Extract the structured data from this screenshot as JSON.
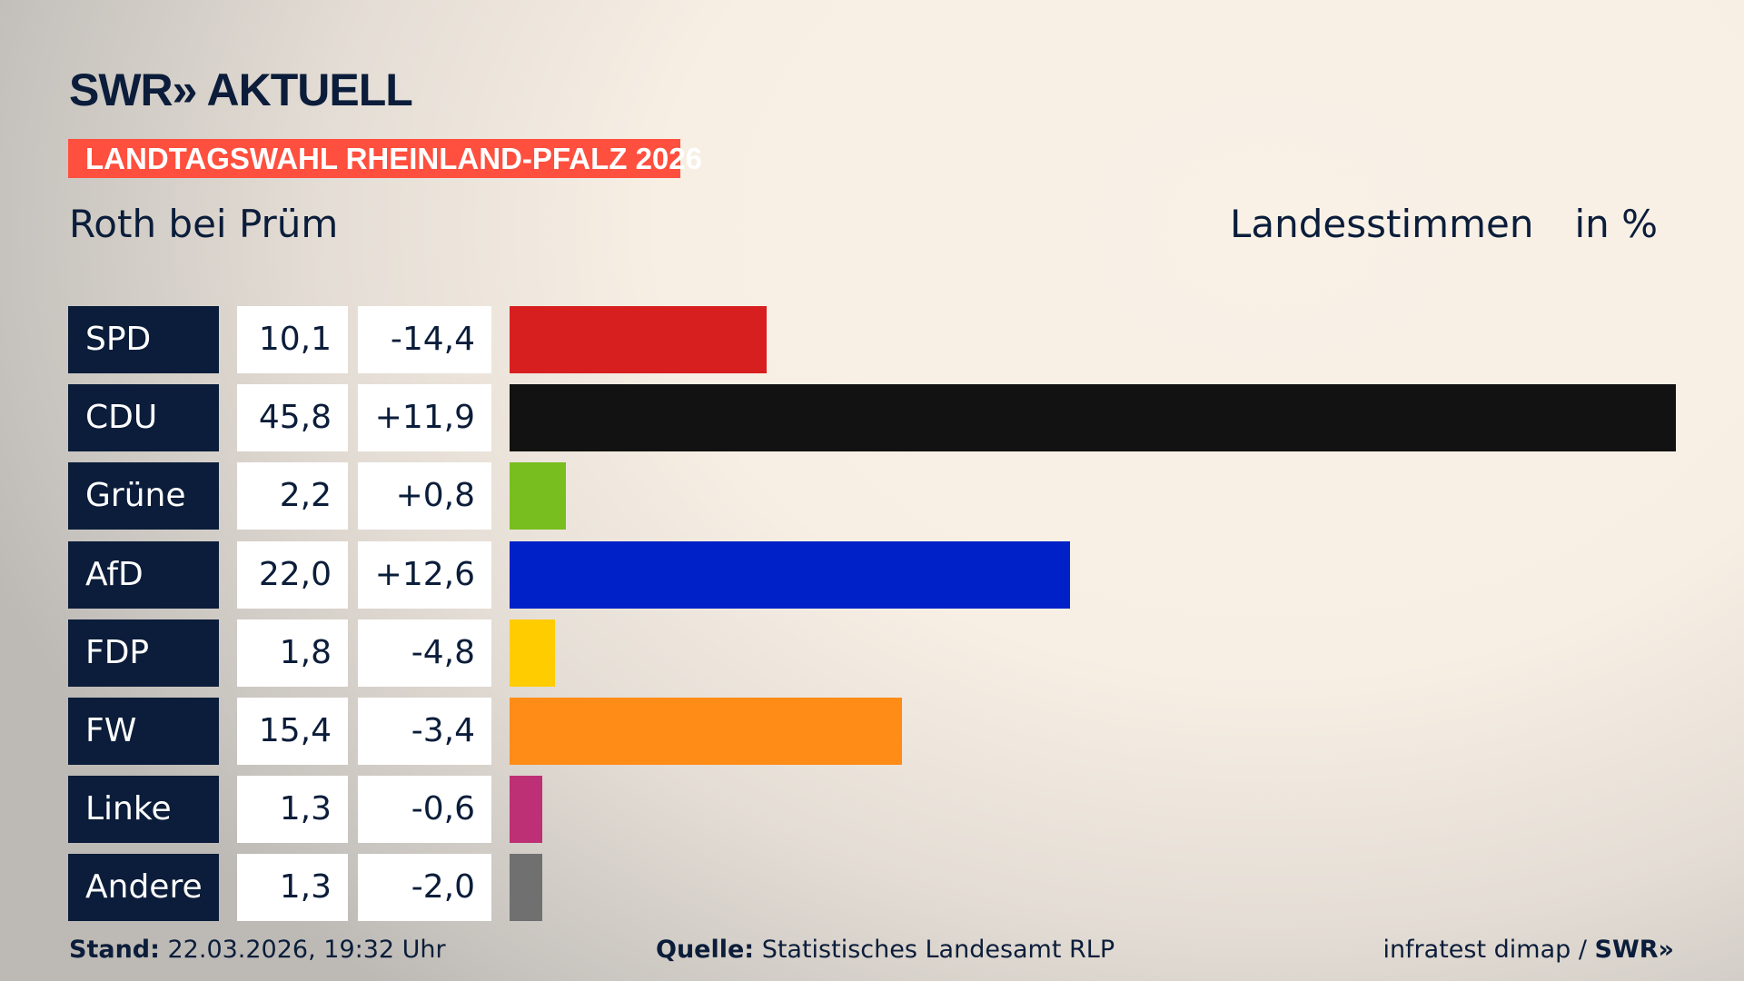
{
  "brand": {
    "logo": "SWR» AKTUELL"
  },
  "banner": "LANDTAGSWAHL RHEINLAND-PFALZ 2026",
  "header": {
    "place": "Roth bei Prüm",
    "measure": "Landesstimmen",
    "unit": "in %"
  },
  "chart_data": {
    "type": "bar",
    "orientation": "horizontal",
    "categories": [
      "SPD",
      "CDU",
      "Grüne",
      "AfD",
      "FDP",
      "FW",
      "Linke",
      "Andere"
    ],
    "values": [
      10.1,
      45.8,
      2.2,
      22.0,
      1.8,
      15.4,
      1.3,
      1.3
    ],
    "value_labels": [
      "10,1",
      "45,8",
      "2,2",
      "22,0",
      "1,8",
      "15,4",
      "1,3",
      "1,3"
    ],
    "diff_labels": [
      "-14,4",
      "+11,9",
      "+0,8",
      "+12,6",
      "-4,8",
      "-3,4",
      "-0,6",
      "-2,0"
    ],
    "colors": [
      "#d81f20",
      "#121212",
      "#78be1e",
      "#0021c8",
      "#ffcc00",
      "#ff8c17",
      "#be3075",
      "#707070"
    ],
    "xlim": [
      0,
      45.8
    ]
  },
  "footer": {
    "stand_label": "Stand:",
    "stand_value": " 22.03.2026, 19:32 Uhr",
    "source_label": "Quelle:",
    "source_value": " Statistisches Landesamt RLP",
    "credit": "infratest dimap / ",
    "credit_logo": "SWR»"
  }
}
